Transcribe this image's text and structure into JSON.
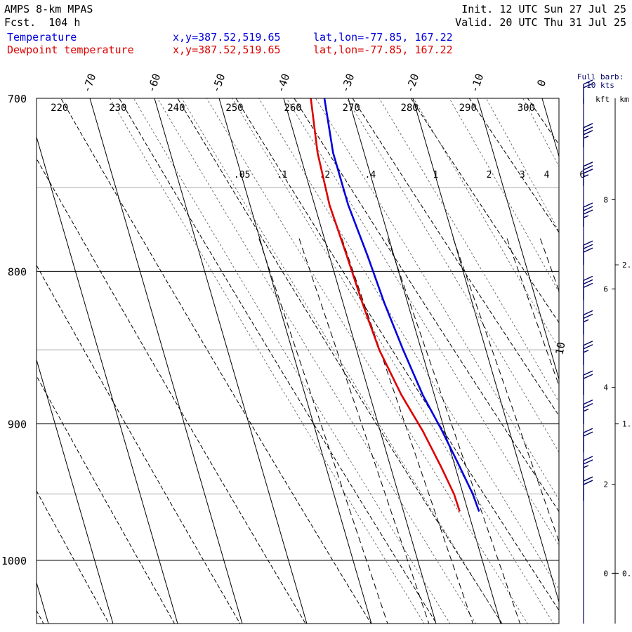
{
  "header": {
    "model": "AMPS 8-km MPAS",
    "forecast": "Fcst.  104 h",
    "init": "Init. 12 UTC Sun 27 Jul 25",
    "valid": "Valid. 20 UTC Thu 31 Jul 25",
    "temp_label": "Temperature",
    "dew_label": "Dewpoint temperature",
    "temp_xy": "x,y=387.52,519.65",
    "dew_xy": "x,y=387.52,519.65",
    "temp_latlon": "lat,lon=-77.85, 167.22",
    "dew_latlon": "lat,lon=-77.85, 167.22"
  },
  "barb_legend": {
    "line1": "Full barb:",
    "line2": "10 kts"
  },
  "height_axis": {
    "kft_label": "kft",
    "km_label": "km",
    "kft_ticks": [
      {
        "label": "8",
        "p": 757
      },
      {
        "label": "6",
        "p": 811
      },
      {
        "label": "4",
        "p": 875
      },
      {
        "label": "2",
        "p": 943
      },
      {
        "label": "0",
        "p": 1010
      }
    ],
    "km_ticks": [
      {
        "label": "2.",
        "p": 796
      },
      {
        "label": "1.",
        "p": 900
      },
      {
        "label": "0.",
        "p": 1010
      }
    ]
  },
  "colors": {
    "temperature": "#0000dd",
    "dewpoint": "#dd0000",
    "grid": "#000000",
    "minor_grid": "#aaaaaa"
  },
  "chart_data": {
    "type": "line",
    "subtype": "skew-T log-p sounding",
    "pressure_axis": {
      "label": "",
      "range": [
        700,
        1040
      ],
      "ticks": [
        700,
        800,
        900,
        1000
      ],
      "minor_ticks": [
        750,
        850,
        950
      ],
      "scale": "log"
    },
    "temperature_axis": {
      "ticks": [
        -70,
        -60,
        -50,
        -40,
        -30,
        -20,
        -10,
        0
      ],
      "tick_labels": [
        "-70",
        "-60",
        "-50",
        "-40",
        "-30",
        "-20",
        "-10",
        "0"
      ],
      "extra_label": {
        "text": "10",
        "value": 10
      }
    },
    "dry_adiabat_labels": [
      220,
      230,
      240,
      250,
      260,
      270,
      280,
      290,
      300
    ],
    "mixing_ratio_labels": [
      ".05",
      ".1",
      ".2",
      ".4",
      "1",
      "2",
      "3",
      "4",
      "6"
    ],
    "series": [
      {
        "name": "Temperature",
        "pressure": [
          700,
          730,
          760,
          790,
          820,
          850,
          880,
          905,
          930,
          950,
          963
        ],
        "values": [
          -33.7,
          -34.8,
          -34.8,
          -34.1,
          -33.6,
          -32.8,
          -31.8,
          -30.4,
          -29.3,
          -28.5,
          -28.3
        ]
      },
      {
        "name": "Dewpoint temperature",
        "pressure": [
          700,
          730,
          760,
          790,
          820,
          850,
          880,
          905,
          930,
          950,
          963
        ],
        "values": [
          -35.8,
          -37.2,
          -37.7,
          -37.3,
          -37.0,
          -36.5,
          -35.1,
          -33.4,
          -32.2,
          -31.4,
          -31.3
        ]
      }
    ],
    "wind_barbs": {
      "label": "Full barb: 10 kts",
      "levels": [
        {
          "p": 703,
          "speed": 20
        },
        {
          "p": 727,
          "speed": 35
        },
        {
          "p": 749,
          "speed": 35
        },
        {
          "p": 773,
          "speed": 35
        },
        {
          "p": 796,
          "speed": 30
        },
        {
          "p": 818,
          "speed": 30
        },
        {
          "p": 840,
          "speed": 25
        },
        {
          "p": 860,
          "speed": 25
        },
        {
          "p": 880,
          "speed": 20
        },
        {
          "p": 900,
          "speed": 25
        },
        {
          "p": 920,
          "speed": 20
        },
        {
          "p": 940,
          "speed": 25
        },
        {
          "p": 955,
          "speed": 20
        }
      ]
    },
    "grid": true,
    "legend": "top-left"
  }
}
